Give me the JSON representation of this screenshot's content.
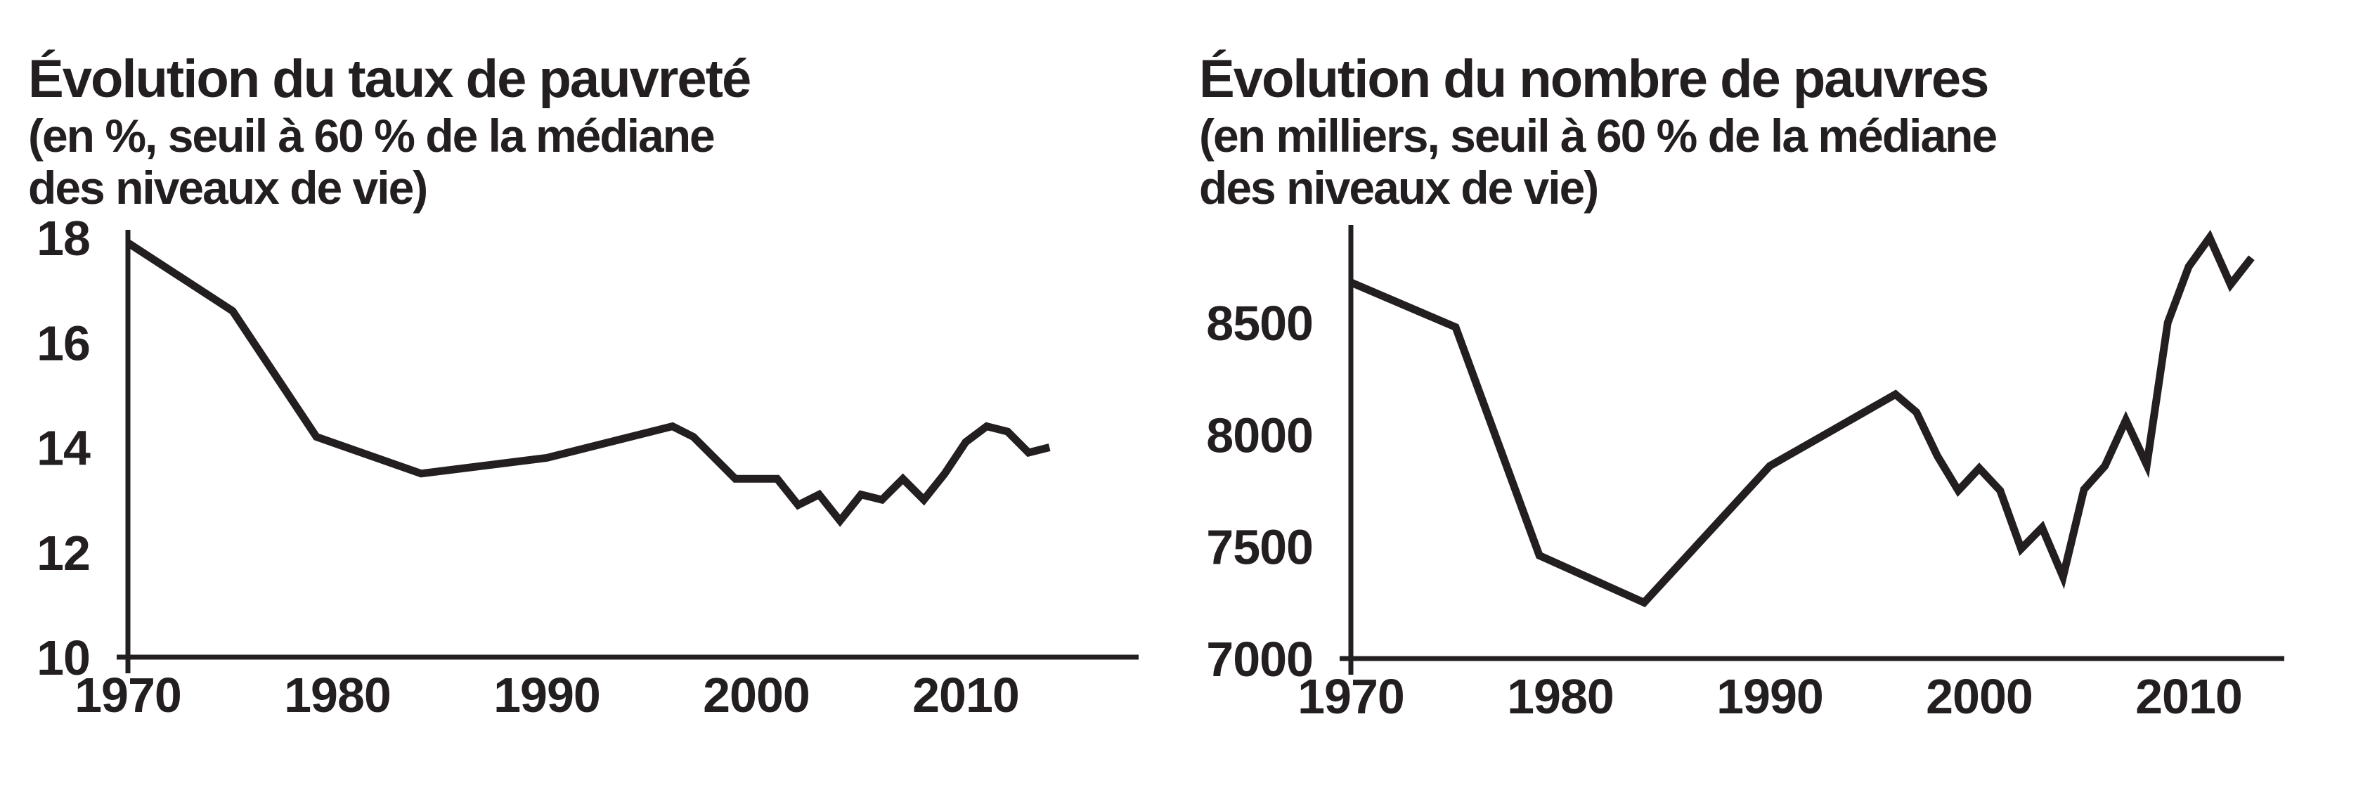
{
  "page_background": "#ffffff",
  "ink_color": "#231f20",
  "chart_data": [
    {
      "id": "taux-pauvrete",
      "type": "line",
      "title": "Évolution du taux de pauvreté",
      "subtitle": [
        "(en %, seuil à 60 % de la médiane",
        "des niveaux de vie)"
      ],
      "xlabel": "",
      "ylabel": "",
      "x": [
        1970,
        1975,
        1979,
        1984,
        1990,
        1996,
        1997,
        1998,
        1999,
        2000,
        2001,
        2002,
        2003,
        2004,
        2005,
        2006,
        2007,
        2008,
        2009,
        2010,
        2011,
        2012,
        2013,
        2014
      ],
      "y": [
        17.9,
        16.6,
        14.2,
        13.5,
        13.8,
        14.4,
        14.2,
        13.8,
        13.4,
        13.4,
        13.4,
        12.9,
        13.1,
        12.6,
        13.1,
        13.0,
        13.4,
        13.0,
        13.5,
        14.1,
        14.4,
        14.3,
        13.9,
        14.0
      ],
      "yticks": [
        10,
        12,
        14,
        16,
        18
      ],
      "xticks": [
        1970,
        1980,
        1990,
        2000,
        2010
      ],
      "ylim": [
        10,
        18.15
      ],
      "xlim": [
        1970,
        2018.2
      ],
      "grid": false,
      "legend": "none",
      "line_color": "#231f20"
    },
    {
      "id": "nombre-pauvres",
      "type": "line",
      "title": "Évolution du nombre de pauvres",
      "subtitle": [
        "(en milliers, seuil à 60 % de la médiane",
        "des niveaux de vie)"
      ],
      "xlabel": "",
      "ylabel": "",
      "x": [
        1970,
        1975,
        1979,
        1984,
        1990,
        1996,
        1997,
        1998,
        1999,
        2000,
        2001,
        2002,
        2003,
        2004,
        2005,
        2006,
        2007,
        2008,
        2009,
        2010,
        2011,
        2012,
        2013
      ],
      "y": [
        8680,
        8480,
        7460,
        7250,
        7860,
        8180,
        8100,
        7905,
        7750,
        7850,
        7750,
        7490,
        7585,
        7365,
        7755,
        7860,
        8065,
        7865,
        8500,
        8750,
        8880,
        8670,
        8790
      ],
      "yticks": [
        7000,
        7500,
        8000,
        8500
      ],
      "xticks": [
        1970,
        1980,
        1990,
        2000,
        2010
      ],
      "ylim": [
        7000,
        8940
      ],
      "xlim": [
        1970,
        2014.6
      ],
      "grid": false,
      "legend": "none",
      "line_color": "#231f20"
    }
  ]
}
